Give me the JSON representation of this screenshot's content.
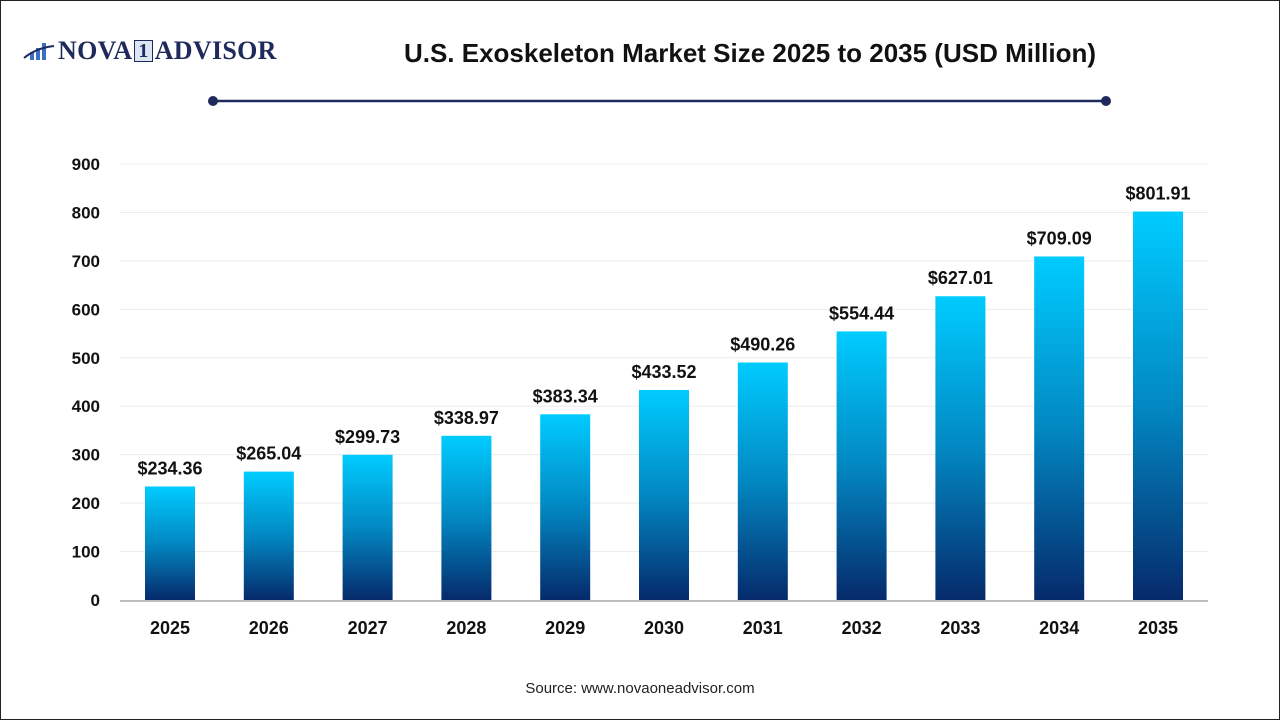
{
  "logo": {
    "text_left": "NOVA",
    "text_one": "1",
    "text_right": "ADVISOR"
  },
  "title": "U.S. Exoskeleton Market Size 2025 to 2035 (USD Million)",
  "source": "Source: www.novaoneadvisor.com",
  "colors": {
    "bar_top": "#00ccff",
    "bar_bottom": "#062a6b",
    "title_rule": "#1f2a5c"
  },
  "chart_data": {
    "type": "bar",
    "title": "U.S. Exoskeleton Market Size 2025 to 2035 (USD Million)",
    "xlabel": "",
    "ylabel": "",
    "categories": [
      "2025",
      "2026",
      "2027",
      "2028",
      "2029",
      "2030",
      "2031",
      "2032",
      "2033",
      "2034",
      "2035"
    ],
    "values": [
      234.36,
      265.04,
      299.73,
      338.97,
      383.34,
      433.52,
      490.26,
      554.44,
      627.01,
      709.09,
      801.91
    ],
    "data_labels": [
      "$234.36",
      "$265.04",
      "$299.73",
      "$338.97",
      "$383.34",
      "$433.52",
      "$490.26",
      "$554.44",
      "$627.01",
      "$709.09",
      "$801.91"
    ],
    "ylim": [
      0,
      900
    ],
    "yticks": [
      0,
      100,
      200,
      300,
      400,
      500,
      600,
      700,
      800,
      900
    ],
    "grid": true,
    "legend": "none"
  }
}
